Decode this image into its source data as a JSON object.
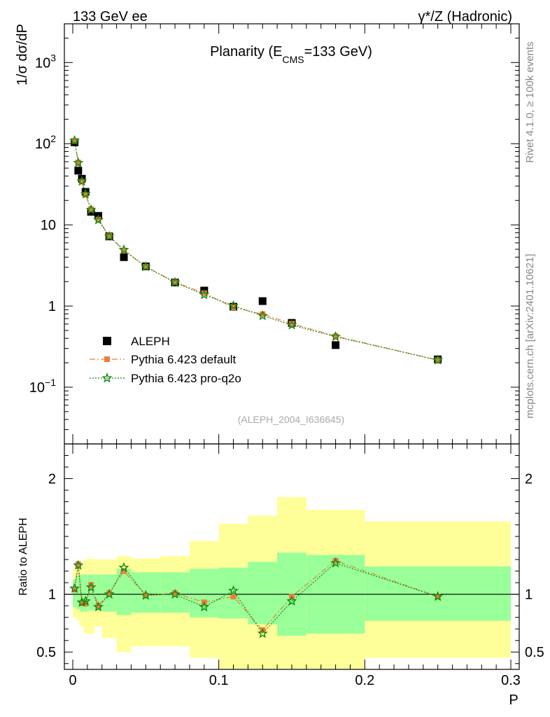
{
  "header": {
    "left": "133 GeV ee",
    "right": "γ*/Z (Hadronic)"
  },
  "side_text": {
    "rivet": "Rivet 4.1.0, ≥ 100k events",
    "mcplots": "mcplots.cern.ch [arXiv:2401.10621]"
  },
  "colors": {
    "data": "#000000",
    "default": "#ee7d3b",
    "proq2o": "#118a11",
    "band_outer": "#ffff99",
    "band_inner": "#99ff99"
  },
  "chart_data": {
    "type": "scatter",
    "title": "Planarity (E_CMS=133 GeV)",
    "title_parts": {
      "main": "Planarity (E",
      "sub": "CMS",
      "rest": "=133 GeV)"
    },
    "xlabel": "P",
    "ylabel": "1/σ  dσ/dP",
    "ratio_ylabel": "Ratio to ALEPH",
    "analysis_tag": "(ALEPH_2004_I636645)",
    "xlim": [
      0,
      0.3
    ],
    "ylim_log": [
      0.02,
      3000
    ],
    "ratio_ylim": [
      0.35,
      2.3
    ],
    "x_ticks": [
      {
        "v": 0,
        "label": "0"
      },
      {
        "v": 0.1,
        "label": "0.1"
      },
      {
        "v": 0.2,
        "label": "0.2"
      },
      {
        "v": 0.3,
        "label": "0.3"
      }
    ],
    "y_ticks": [
      {
        "v": 0.1,
        "base": "10",
        "exp": "−1"
      },
      {
        "v": 1,
        "base": "1",
        "exp": ""
      },
      {
        "v": 10,
        "base": "10",
        "exp": ""
      },
      {
        "v": 100,
        "base": "10",
        "exp": "2"
      },
      {
        "v": 1000,
        "base": "10",
        "exp": "3"
      }
    ],
    "ratio_ticks": [
      {
        "v": 0.5,
        "label": "0.5"
      },
      {
        "v": 1,
        "label": "1"
      },
      {
        "v": 2,
        "label": "2"
      }
    ],
    "legend": [
      {
        "key": "data",
        "label": "ALEPH"
      },
      {
        "key": "default",
        "label": "Pythia 6.423 default"
      },
      {
        "key": "proq2o",
        "label": "Pythia 6.423 pro-q2o"
      }
    ],
    "bins": [
      {
        "lo": 0.0,
        "hi": 0.0025,
        "x": 0.00125,
        "data": 104,
        "inner": [
          0.89,
          1.13
        ],
        "outer": [
          0.8,
          1.22
        ]
      },
      {
        "lo": 0.0025,
        "hi": 0.005,
        "x": 0.00375,
        "data": 46.5,
        "inner": [
          0.87,
          1.16
        ],
        "outer": [
          0.77,
          1.26
        ]
      },
      {
        "lo": 0.005,
        "hi": 0.0075,
        "x": 0.00625,
        "data": 37,
        "inner": [
          0.85,
          1.17
        ],
        "outer": [
          0.72,
          1.27
        ]
      },
      {
        "lo": 0.0075,
        "hi": 0.01,
        "x": 0.00875,
        "data": 25.5,
        "inner": [
          0.85,
          1.17
        ],
        "outer": [
          0.66,
          1.3
        ]
      },
      {
        "lo": 0.01,
        "hi": 0.015,
        "x": 0.0125,
        "data": 14.5,
        "inner": [
          0.86,
          1.17
        ],
        "outer": [
          0.66,
          1.31
        ]
      },
      {
        "lo": 0.015,
        "hi": 0.02,
        "x": 0.0175,
        "data": 12.9,
        "inner": [
          0.86,
          1.17
        ],
        "outer": [
          0.72,
          1.3
        ]
      },
      {
        "lo": 0.02,
        "hi": 0.03,
        "x": 0.025,
        "data": 7.2,
        "inner": [
          0.85,
          1.17
        ],
        "outer": [
          0.62,
          1.3
        ]
      },
      {
        "lo": 0.03,
        "hi": 0.04,
        "x": 0.035,
        "data": 4.0,
        "inner": [
          0.82,
          1.22
        ],
        "outer": [
          0.5,
          1.33
        ]
      },
      {
        "lo": 0.04,
        "hi": 0.06,
        "x": 0.05,
        "data": 3.08,
        "inner": [
          0.84,
          1.19
        ],
        "outer": [
          0.55,
          1.31
        ]
      },
      {
        "lo": 0.06,
        "hi": 0.08,
        "x": 0.07,
        "data": 1.95,
        "inner": [
          0.84,
          1.19
        ],
        "outer": [
          0.55,
          1.33
        ]
      },
      {
        "lo": 0.08,
        "hi": 0.1,
        "x": 0.09,
        "data": 1.55,
        "inner": [
          0.8,
          1.22
        ],
        "outer": [
          0.45,
          1.46
        ]
      },
      {
        "lo": 0.1,
        "hi": 0.12,
        "x": 0.11,
        "data": 0.98,
        "inner": [
          0.79,
          1.23
        ],
        "outer": [
          0.35,
          1.61
        ]
      },
      {
        "lo": 0.12,
        "hi": 0.14,
        "x": 0.13,
        "data": 1.15,
        "inner": [
          0.74,
          1.28
        ],
        "outer": [
          0.35,
          1.68
        ]
      },
      {
        "lo": 0.14,
        "hi": 0.16,
        "x": 0.15,
        "data": 0.62,
        "inner": [
          0.64,
          1.36
        ],
        "outer": [
          0.35,
          1.84
        ]
      },
      {
        "lo": 0.16,
        "hi": 0.2,
        "x": 0.18,
        "data": 0.33,
        "inner": [
          0.66,
          1.34
        ],
        "outer": [
          0.35,
          1.73
        ]
      },
      {
        "lo": 0.2,
        "hi": 0.3,
        "x": 0.25,
        "data": 0.22,
        "inner": [
          0.77,
          1.24
        ],
        "outer": [
          0.45,
          1.63
        ]
      }
    ],
    "series": [
      {
        "name": "Pythia 6.423 default",
        "key": "default",
        "ratio": [
          1.04,
          1.26,
          0.92,
          0.92,
          1.08,
          0.9,
          1.01,
          1.2,
          0.99,
          1.01,
          0.93,
          0.98,
          0.69,
          0.98,
          1.29,
          0.98
        ]
      },
      {
        "name": "Pythia 6.423 pro-q2o",
        "key": "proq2o",
        "ratio": [
          1.05,
          1.25,
          0.93,
          0.94,
          1.06,
          0.89,
          1.0,
          1.23,
          0.99,
          1.0,
          0.89,
          1.03,
          0.66,
          0.94,
          1.27,
          0.98
        ]
      }
    ]
  }
}
